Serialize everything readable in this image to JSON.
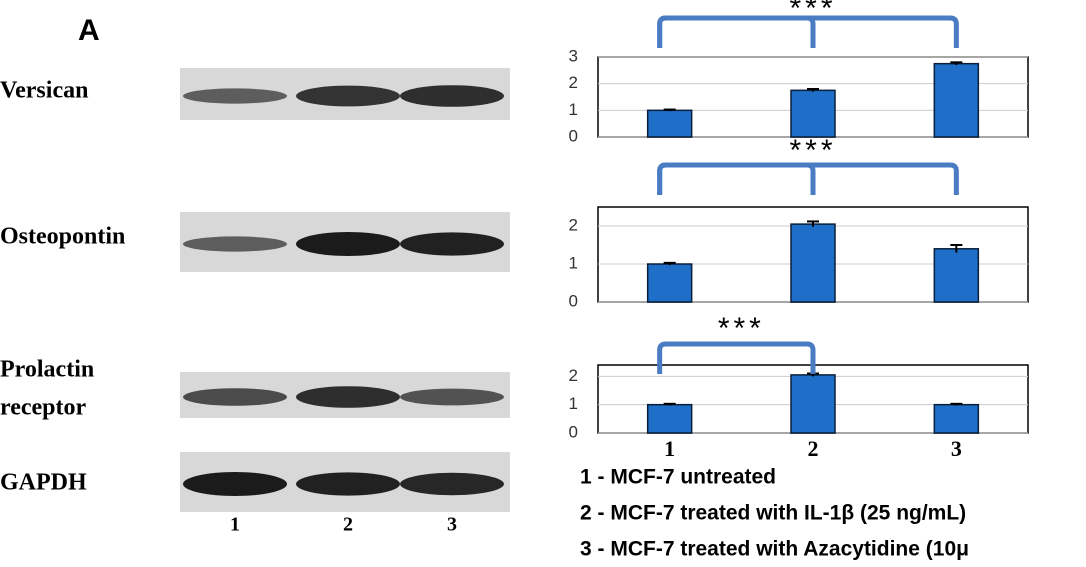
{
  "panel_label": "A",
  "blots": {
    "rows": [
      [
        "Versican"
      ],
      [
        "Osteopontin"
      ],
      [
        "Prolactin",
        "receptor"
      ],
      [
        "GAPDH"
      ]
    ],
    "lanes": [
      "1",
      "2",
      "3"
    ]
  },
  "chart_data": [
    {
      "type": "bar",
      "categories": [
        null,
        null,
        null
      ],
      "values": [
        1.0,
        1.75,
        2.75
      ],
      "errors": [
        0.03,
        0.05,
        0.05
      ],
      "color": "#1f6fc8",
      "ylim": [
        0,
        3
      ],
      "yticks": [
        0,
        1,
        2,
        3
      ],
      "grid": true,
      "annotation": "***"
    },
    {
      "type": "bar",
      "categories": [
        null,
        null,
        null
      ],
      "values": [
        1.0,
        2.05,
        1.4
      ],
      "errors": [
        0.03,
        0.07,
        0.1
      ],
      "color": "#1f6fc8",
      "ylim": [
        0,
        2.5
      ],
      "yticks": [
        0,
        1,
        2
      ],
      "grid": true,
      "annotation": "***"
    },
    {
      "type": "bar",
      "categories": [
        "1",
        "2",
        "3"
      ],
      "values": [
        1.0,
        2.05,
        1.0
      ],
      "errors": [
        0.03,
        0.05,
        0.03
      ],
      "color": "#1f6fc8",
      "ylim": [
        0,
        2.4
      ],
      "yticks": [
        0,
        1,
        2
      ],
      "grid": true,
      "annotation": "***"
    }
  ],
  "legend": [
    "1 - MCF-7 untreated",
    "2 - MCF-7 treated with IL-1β (25 ng/mL)",
    "3 - MCF-7 treated with Azacytidine (10μ"
  ]
}
